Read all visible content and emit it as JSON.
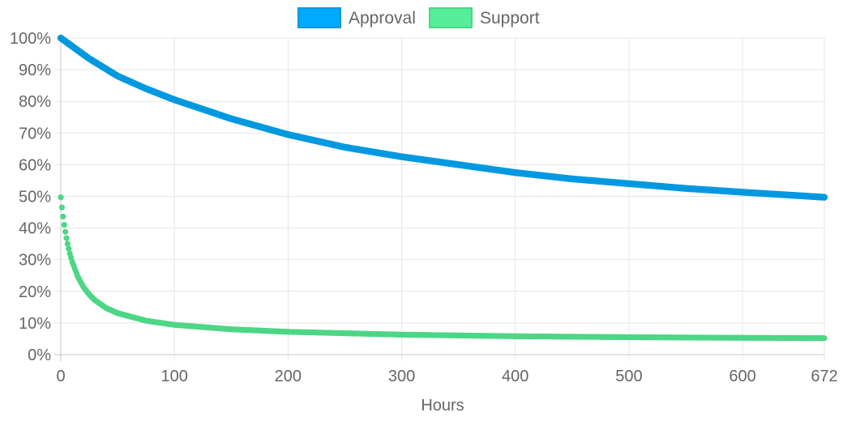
{
  "chart_data": {
    "type": "scatter",
    "xlabel": "Hours",
    "ylabel": "",
    "xlim": [
      0,
      672
    ],
    "ylim": [
      0,
      100
    ],
    "x_ticks": [
      0,
      100,
      200,
      300,
      400,
      500,
      600,
      672
    ],
    "y_ticks": [
      0,
      10,
      20,
      30,
      40,
      50,
      60,
      70,
      80,
      90,
      100
    ],
    "y_tick_suffix": "%",
    "grid": true,
    "legend_position": "top-center",
    "series": [
      {
        "name": "Approval",
        "color": "#0099e0",
        "legend_fill": "#00aaff",
        "legend_stroke": "#0099e0",
        "x": [
          0,
          25,
          50,
          75,
          100,
          150,
          200,
          250,
          300,
          350,
          400,
          450,
          500,
          550,
          600,
          650,
          672
        ],
        "y": [
          100,
          93.5,
          88,
          84,
          80.5,
          74.5,
          69.5,
          65.5,
          62.5,
          60,
          57.5,
          55.5,
          54,
          52.5,
          51.3,
          50.2,
          49.7
        ]
      },
      {
        "name": "Support",
        "color": "#4cd685",
        "legend_fill": "#55ee99",
        "legend_stroke": "#4cd685",
        "x": [
          0,
          1,
          2,
          3,
          4,
          5,
          6,
          8,
          10,
          15,
          20,
          25,
          30,
          40,
          50,
          75,
          100,
          150,
          200,
          300,
          400,
          500,
          600,
          672
        ],
        "y": [
          49.7,
          46.5,
          43.6,
          41,
          38.8,
          36.8,
          35,
          31.9,
          29.4,
          24.6,
          21.3,
          19,
          17.2,
          14.7,
          13.1,
          10.7,
          9.4,
          8,
          7.2,
          6.3,
          5.8,
          5.5,
          5.3,
          5.2
        ]
      }
    ]
  }
}
